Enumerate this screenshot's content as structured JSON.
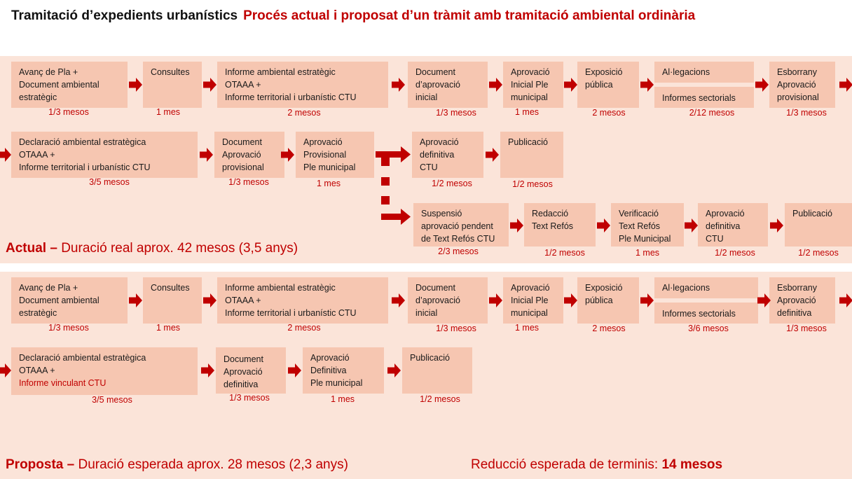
{
  "title": {
    "main": "Tramitació d’expedients urbanístics",
    "sub": "Procés actual i proposat d’un tràmit amb tramitació ambiental ordinària"
  },
  "actual": {
    "label_bold": "Actual –",
    "label_text": " Duració real aprox. 42 mesos (3,5 anys)",
    "row1": [
      {
        "text": "Avanç de Pla +\nDocument ambiental\nestratègic",
        "dur": "1/3 mesos"
      },
      {
        "text": "Consultes",
        "dur": "1 mes"
      },
      {
        "text": "Informe ambiental estratègic\nOTAAA +\nInforme territorial i urbanístic CTU",
        "dur": "2 mesos"
      },
      {
        "text": "Document\nd’aprovació\ninicial",
        "dur": "1/3 mesos"
      },
      {
        "text": "Aprovació\nInicial Ple\nmunicipal",
        "dur": "1 mes"
      },
      {
        "text": "Exposició\npública",
        "dur": "2 mesos"
      },
      {
        "text": "Al·legacions",
        "text2": "Informes sectorials",
        "dur": "2/12 mesos"
      },
      {
        "text": "Esborrany\nAprovació\nprovisional",
        "dur": "1/3 mesos"
      }
    ],
    "row2": [
      {
        "text": "Declaració ambiental estratègica\nOTAAA +\nInforme territorial i urbanístic CTU",
        "dur": "3/5 mesos"
      },
      {
        "text": "Document\nAprovació\nprovisional",
        "dur": "1/3 mesos"
      },
      {
        "text": "Aprovació\nProvisional\nPle municipal",
        "dur": "1 mes"
      },
      {
        "text": "Aprovació\ndefinitiva\nCTU",
        "dur": "1/2 mesos"
      },
      {
        "text": "Publicació",
        "dur": "1/2 mesos"
      }
    ],
    "row3": [
      {
        "text": "Suspensió\naprovació pendent\nde Text Refós CTU",
        "dur": "2/3 mesos"
      },
      {
        "text": "Redacció\nText Refós",
        "dur": "1/2 mesos"
      },
      {
        "text": "Verificació\nText Refós\nPle Municipal",
        "dur": "1 mes"
      },
      {
        "text": "Aprovació\ndefinitiva\nCTU",
        "dur": "1/2 mesos"
      },
      {
        "text": "Publicació",
        "dur": "1/2 mesos"
      }
    ]
  },
  "proposta": {
    "label_bold": "Proposta –",
    "label_text": " Duració esperada aprox. 28 mesos (2,3 anys)",
    "reduction_text": "Reducció esperada de terminis: ",
    "reduction_value": "14 mesos",
    "row1": [
      {
        "text": "Avanç de Pla +\nDocument ambiental\nestratègic",
        "dur": "1/3 mesos"
      },
      {
        "text": "Consultes",
        "dur": "1 mes"
      },
      {
        "text": "Informe ambiental estratègic\nOTAAA +\nInforme territorial i urbanístic CTU",
        "dur": "2 mesos"
      },
      {
        "text": "Document\nd’aprovació\ninicial",
        "dur": "1/3 mesos"
      },
      {
        "text": "Aprovació\nInicial Ple\nmunicipal",
        "dur": "1 mes"
      },
      {
        "text": "Exposició\npública",
        "dur": "2 mesos"
      },
      {
        "text": "Al·legacions",
        "text2": "Informes sectorials",
        "dur": "3/6 mesos"
      },
      {
        "text": "Esborrany\nAprovació\ndefinitiva",
        "dur": "1/3 mesos"
      }
    ],
    "row2": [
      {
        "text": "Declaració ambiental estratègica\nOTAAA +",
        "text_red": "Informe vinculant CTU",
        "dur": "3/5 mesos"
      },
      {
        "text": "Document\nAprovació\ndefinitiva",
        "dur": "1/3 mesos"
      },
      {
        "text": "Aprovació\nDefinitiva\nPle municipal",
        "dur": "1 mes"
      },
      {
        "text": "Publicació",
        "dur": "1/2 mesos"
      }
    ]
  },
  "colors": {
    "accent": "#c00000",
    "panel": "#fbe4d9",
    "box": "#f6c6b1"
  }
}
